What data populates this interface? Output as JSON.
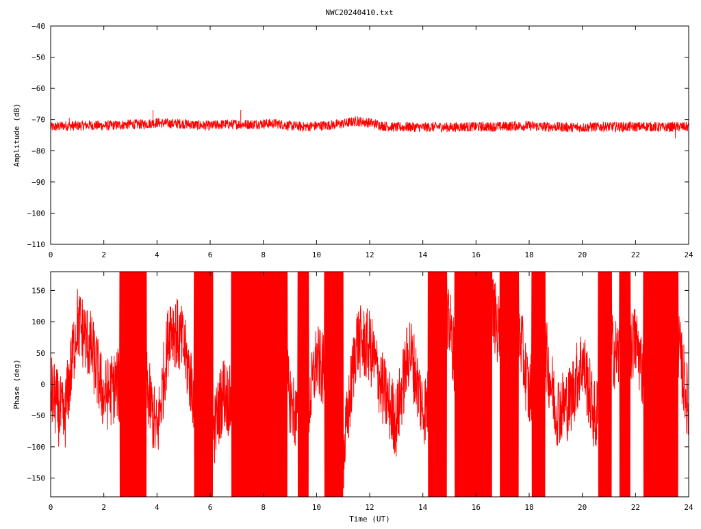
{
  "title": "NWC20240410.txt",
  "colors": {
    "series": "#ff0000",
    "axis": "#000000",
    "background": "#ffffff"
  },
  "chart_data": [
    {
      "type": "line",
      "title": "NWC20240410.txt",
      "xlabel": "",
      "ylabel": "Amplitude (dB)",
      "xlim": [
        0,
        24
      ],
      "ylim": [
        -110,
        -40
      ],
      "xticks": [
        0,
        2,
        4,
        6,
        8,
        10,
        12,
        14,
        16,
        18,
        20,
        22,
        24
      ],
      "yticks": [
        -110,
        -100,
        -90,
        -80,
        -70,
        -60,
        -50,
        -40
      ],
      "xtick_labels": [
        "0",
        "2",
        "4",
        "6",
        "8",
        "10",
        "12",
        "14",
        "16",
        "18",
        "20",
        "22",
        "24"
      ],
      "ytick_labels": [
        "−110",
        "−100",
        "−90",
        "−80",
        "−70",
        "−60",
        "−50",
        "−40"
      ],
      "grid": false,
      "series": [
        {
          "color": "#ff0000",
          "x": [
            0,
            0.5,
            1,
            1.5,
            2,
            2.5,
            3,
            3.5,
            4,
            4.5,
            5,
            5.5,
            6,
            6.5,
            7,
            7.5,
            8,
            8.5,
            9,
            9.5,
            10,
            10.5,
            11,
            11.5,
            12,
            12.5,
            13,
            13.5,
            14,
            14.5,
            15,
            15.5,
            16,
            16.5,
            17,
            17.5,
            18,
            18.5,
            19,
            19.5,
            20,
            20.5,
            21,
            21.5,
            22,
            22.5,
            23,
            23.5,
            24
          ],
          "values": [
            -72.5,
            -72,
            -72,
            -71.8,
            -72,
            -71.8,
            -71.5,
            -71.5,
            -71,
            -71.3,
            -71.3,
            -71.8,
            -72,
            -71.5,
            -71.5,
            -71.5,
            -71.3,
            -71.3,
            -72,
            -72.3,
            -72,
            -71.8,
            -71.3,
            -70.5,
            -71,
            -72,
            -72.5,
            -72.3,
            -72.5,
            -72.3,
            -72.5,
            -72.3,
            -72.3,
            -72.3,
            -72.2,
            -72,
            -72,
            -72.3,
            -72.3,
            -72.5,
            -72.5,
            -72.3,
            -72.3,
            -72.3,
            -72.3,
            -72.2,
            -72.5,
            -72.3,
            -72.3
          ],
          "spikes": [
            [
              0.7,
              -69.5
            ],
            [
              3.85,
              -67
            ],
            [
              7.15,
              -67
            ],
            [
              11.55,
              -69
            ],
            [
              23.5,
              -76
            ]
          ],
          "noise_band": 1.6
        }
      ]
    },
    {
      "type": "line",
      "title": "",
      "xlabel": "Time (UT)",
      "ylabel": "Phase (deg)",
      "xlim": [
        0,
        24
      ],
      "ylim": [
        -180,
        180
      ],
      "xticks": [
        0,
        2,
        4,
        6,
        8,
        10,
        12,
        14,
        16,
        18,
        20,
        22,
        24
      ],
      "yticks": [
        -150,
        -100,
        -50,
        0,
        50,
        100,
        150
      ],
      "xtick_labels": [
        "0",
        "2",
        "4",
        "6",
        "8",
        "10",
        "12",
        "14",
        "16",
        "18",
        "20",
        "22",
        "24"
      ],
      "ytick_labels": [
        "−150",
        "−100",
        "−50",
        "0",
        "50",
        "100",
        "150"
      ],
      "grid": false,
      "series": [
        {
          "color": "#ff0000",
          "x": [
            0,
            0.5,
            1,
            1.5,
            2,
            2.5,
            3,
            3.5,
            4,
            4.5,
            5,
            5.5,
            6,
            6.5,
            7,
            7.5,
            8,
            8.5,
            9,
            9.5,
            10,
            10.5,
            11,
            11.5,
            12,
            12.5,
            13,
            13.5,
            14,
            14.5,
            15,
            15.5,
            16,
            16.5,
            17,
            17.5,
            18,
            18.5,
            19,
            19.5,
            20,
            20.5,
            21,
            21.5,
            22,
            22.5,
            23,
            23.5,
            24
          ],
          "values": [
            -10,
            -60,
            100,
            60,
            -20,
            0,
            -40,
            20,
            -80,
            100,
            60,
            -40,
            -100,
            -10,
            -50,
            60,
            -40,
            80,
            -20,
            -90,
            40,
            0,
            -120,
            70,
            60,
            -10,
            -60,
            60,
            -40,
            -20,
            100,
            -50,
            80,
            140,
            60,
            120,
            -20,
            80,
            -40,
            -30,
            40,
            -60,
            60,
            40,
            70,
            -20,
            -120,
            90,
            -40
          ],
          "wrap_intervals": [
            [
              2.6,
              3.6
            ],
            [
              5.4,
              6.1
            ],
            [
              6.8,
              8.9
            ],
            [
              9.3,
              9.7
            ],
            [
              10.3,
              11.0
            ],
            [
              14.2,
              14.9
            ],
            [
              15.2,
              16.6
            ],
            [
              16.9,
              17.6
            ],
            [
              18.1,
              18.6
            ],
            [
              20.6,
              21.1
            ],
            [
              21.4,
              21.8
            ],
            [
              22.3,
              23.6
            ]
          ],
          "noise_band": 60
        }
      ]
    }
  ]
}
